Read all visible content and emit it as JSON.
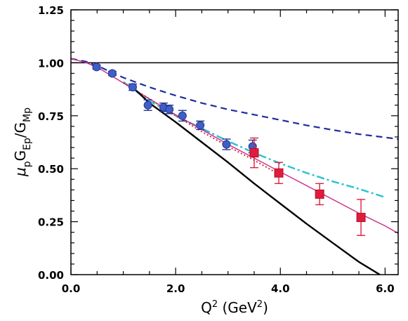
{
  "chart_data": {
    "type": "scatter",
    "xlim": [
      0.0,
      6.25
    ],
    "ylim": [
      0.0,
      1.25
    ],
    "xticks": [
      {
        "value": 0.0,
        "label": "0.0"
      },
      {
        "value": 2.0,
        "label": "2.0"
      },
      {
        "value": 4.0,
        "label": "4.0"
      },
      {
        "value": 6.0,
        "label": "6.0"
      }
    ],
    "yticks": [
      {
        "value": 0.0,
        "label": "0.00"
      },
      {
        "value": 0.25,
        "label": "0.25"
      },
      {
        "value": 0.5,
        "label": "0.50"
      },
      {
        "value": 0.75,
        "label": "0.75"
      },
      {
        "value": 1.0,
        "label": "1.00"
      },
      {
        "value": 1.25,
        "label": "1.25"
      }
    ],
    "xminor_step": 0.5,
    "yminor_step": 0.05,
    "xlabel": {
      "parts": [
        {
          "text": "Q",
          "style": "normal"
        },
        {
          "text": "2",
          "style": "sup"
        },
        {
          "text": "  (GeV",
          "style": "normal"
        },
        {
          "text": "2",
          "style": "sup"
        },
        {
          "text": ")",
          "style": "normal"
        }
      ]
    },
    "ylabel": {
      "parts": [
        {
          "text": "μ",
          "style": "italic"
        },
        {
          "text": "p",
          "style": "sub"
        },
        {
          "text": "G",
          "style": "normal"
        },
        {
          "text": "Ep",
          "style": "sub"
        },
        {
          "text": "/G",
          "style": "normal"
        },
        {
          "text": "Mp",
          "style": "sub"
        }
      ]
    },
    "curves": [
      {
        "color": "#000000",
        "dash": "solid",
        "width": 1.5,
        "points": [
          [
            0.0,
            1.0
          ],
          [
            6.25,
            1.0
          ]
        ]
      },
      {
        "color": "#1e2f9c",
        "dash": "dashed",
        "width": 2.2,
        "points": [
          [
            0.0,
            1.02
          ],
          [
            0.3,
            1.005
          ],
          [
            0.6,
            0.975
          ],
          [
            1.0,
            0.93
          ],
          [
            1.5,
            0.885
          ],
          [
            2.0,
            0.845
          ],
          [
            2.5,
            0.81
          ],
          [
            3.0,
            0.78
          ],
          [
            3.5,
            0.755
          ],
          [
            4.0,
            0.73
          ],
          [
            4.5,
            0.705
          ],
          [
            5.0,
            0.683
          ],
          [
            5.5,
            0.663
          ],
          [
            6.0,
            0.648
          ],
          [
            6.25,
            0.64
          ]
        ]
      },
      {
        "color": "#2cc3d0",
        "dash": "dashdot",
        "width": 2.5,
        "points": [
          [
            1.0,
            0.91
          ],
          [
            1.5,
            0.82
          ],
          [
            2.0,
            0.75
          ],
          [
            2.5,
            0.69
          ],
          [
            3.0,
            0.63
          ],
          [
            3.5,
            0.575
          ],
          [
            4.0,
            0.525
          ],
          [
            4.5,
            0.48
          ],
          [
            5.0,
            0.44
          ],
          [
            5.5,
            0.405
          ],
          [
            6.0,
            0.365
          ]
        ]
      },
      {
        "color": "#cc2a8a",
        "dash": "solid",
        "width": 1.4,
        "points": [
          [
            0.0,
            1.02
          ],
          [
            0.3,
            1.0
          ],
          [
            0.6,
            0.965
          ],
          [
            1.0,
            0.905
          ],
          [
            1.5,
            0.83
          ],
          [
            2.0,
            0.755
          ],
          [
            2.5,
            0.685
          ],
          [
            3.0,
            0.615
          ],
          [
            3.5,
            0.55
          ],
          [
            4.0,
            0.485
          ],
          [
            4.5,
            0.42
          ],
          [
            5.0,
            0.355
          ],
          [
            5.5,
            0.29
          ],
          [
            6.0,
            0.23
          ],
          [
            6.25,
            0.195
          ]
        ]
      },
      {
        "color": "#d42a3a",
        "dash": "dotted",
        "width": 2.0,
        "points": [
          [
            1.0,
            0.905
          ],
          [
            1.5,
            0.83
          ],
          [
            2.0,
            0.75
          ],
          [
            2.5,
            0.675
          ],
          [
            3.0,
            0.605
          ],
          [
            3.5,
            0.54
          ],
          [
            4.0,
            0.47
          ]
        ]
      },
      {
        "color": "#000000",
        "dash": "solid",
        "width": 2.4,
        "points": [
          [
            1.2,
            0.88
          ],
          [
            1.5,
            0.81
          ],
          [
            2.0,
            0.72
          ],
          [
            2.5,
            0.625
          ],
          [
            3.0,
            0.53
          ],
          [
            3.5,
            0.43
          ],
          [
            4.0,
            0.335
          ],
          [
            4.5,
            0.24
          ],
          [
            5.0,
            0.15
          ],
          [
            5.5,
            0.06
          ],
          [
            5.9,
            0.0
          ]
        ]
      }
    ],
    "series": [
      {
        "marker": "circle",
        "color": "#3f5fc8",
        "stroke": "#27358f",
        "errcolor": "#27358f",
        "points": [
          {
            "x": 0.49,
            "y": 0.98,
            "err": 0.01
          },
          {
            "x": 0.79,
            "y": 0.95,
            "err": 0.01
          },
          {
            "x": 1.18,
            "y": 0.885,
            "err": 0.015
          },
          {
            "x": 1.47,
            "y": 0.8,
            "err": 0.025
          },
          {
            "x": 1.77,
            "y": 0.79,
            "err": 0.02
          },
          {
            "x": 1.88,
            "y": 0.78,
            "err": 0.02
          },
          {
            "x": 2.13,
            "y": 0.75,
            "err": 0.025
          },
          {
            "x": 2.47,
            "y": 0.705,
            "err": 0.02
          },
          {
            "x": 2.97,
            "y": 0.615,
            "err": 0.025
          },
          {
            "x": 3.47,
            "y": 0.605,
            "err": 0.03
          }
        ]
      },
      {
        "marker": "square",
        "color": "#e21b3c",
        "stroke": "#b0102a",
        "errcolor": "#e21b3c",
        "points": [
          {
            "x": 3.5,
            "y": 0.575,
            "err": 0.07
          },
          {
            "x": 3.97,
            "y": 0.48,
            "err": 0.05
          },
          {
            "x": 4.75,
            "y": 0.38,
            "err": 0.05
          },
          {
            "x": 5.54,
            "y": 0.27,
            "err": 0.085
          }
        ]
      }
    ]
  }
}
